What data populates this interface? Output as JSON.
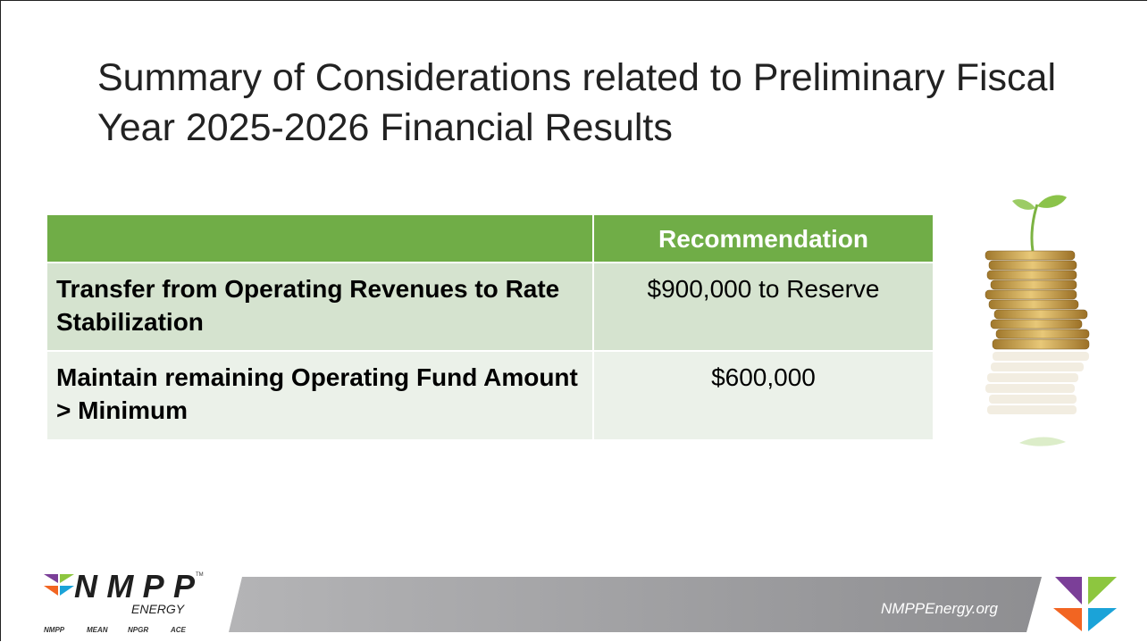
{
  "title": "Summary of Considerations related to Preliminary Fiscal Year 2025-2026 Financial Results",
  "table": {
    "header": [
      "Recommendation"
    ],
    "rows": [
      [
        "Transfer from Operating Revenues to Rate Stabilization",
        "$900,000 to Reserve"
      ],
      [
        "Maintain remaining Operating Fund Amount > Minimum",
        "$600,000"
      ]
    ]
  },
  "footer": {
    "logo": "NMPP",
    "logo_sub": "ENERGY",
    "trademark": "TM",
    "brands": [
      "NMPP",
      "MEAN",
      "NPGR",
      "ACE"
    ],
    "url": "NMPPEnergy.org"
  }
}
